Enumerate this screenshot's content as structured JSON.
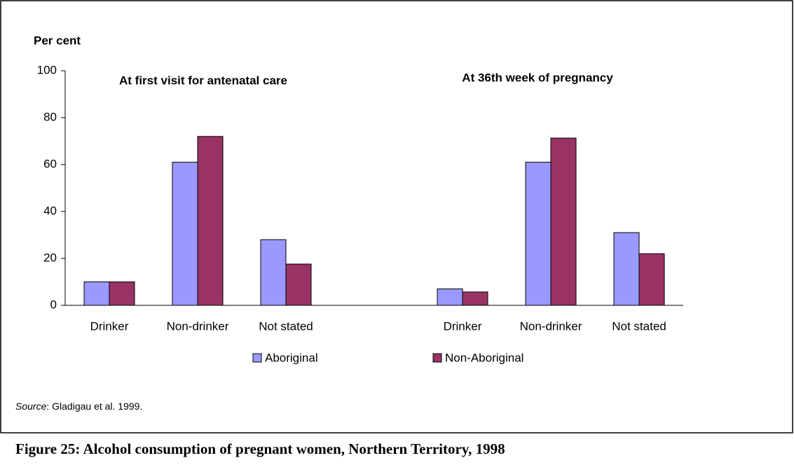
{
  "chart_data": {
    "type": "bar",
    "y_label": "Per cent",
    "annotations": [
      "At first visit for antenatal care",
      "At 36th week of pregnancy"
    ],
    "categories": [
      "Drinker",
      "Non-drinker",
      "Not stated",
      null,
      "Drinker",
      "Non-drinker",
      "Not stated"
    ],
    "series": [
      {
        "name": "Aboriginal",
        "color": "#9999ff",
        "values": [
          10,
          61,
          28,
          null,
          7,
          61,
          31
        ]
      },
      {
        "name": "Non-Aboriginal",
        "color": "#993366",
        "values": [
          10,
          72,
          17.6,
          null,
          5.7,
          71.3,
          22
        ]
      }
    ],
    "ylim": [
      0,
      100
    ],
    "yticks": [
      0,
      20,
      40,
      60,
      80,
      100
    ],
    "grid": false,
    "source_label": "Source",
    "source_text": ": Gladigau et al. 1999.",
    "caption": "Figure 25: Alcohol consumption of pregnant women, Northern Territory, 1998"
  }
}
